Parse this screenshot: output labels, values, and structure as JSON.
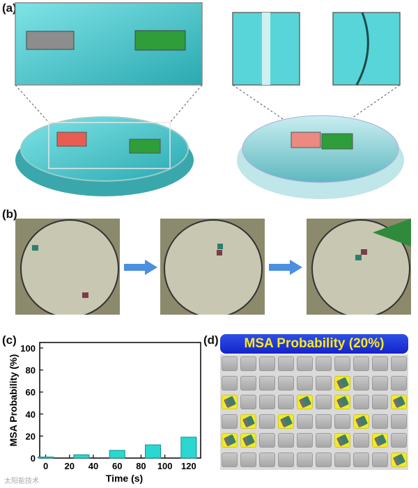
{
  "labels": {
    "a": "(a)",
    "b": "(b)",
    "c": "(c)",
    "d": "(d)"
  },
  "colors": {
    "water": "#4cc9cf",
    "bar": "#2ad7d1",
    "grid_hit": "#f1ea2b",
    "header_bg": "#1e33d8",
    "header_text": "#ffe81a",
    "arrow": "#4a8fe0"
  },
  "panel_d": {
    "title": "MSA Probability (20%)",
    "rows": 6,
    "cols": 10,
    "hits": [
      [
        1,
        6
      ],
      [
        2,
        0
      ],
      [
        2,
        4
      ],
      [
        2,
        6
      ],
      [
        2,
        9
      ],
      [
        3,
        1
      ],
      [
        3,
        3
      ],
      [
        3,
        7
      ],
      [
        4,
        0
      ],
      [
        4,
        1
      ],
      [
        4,
        6
      ],
      [
        4,
        8
      ],
      [
        5,
        9
      ]
    ]
  },
  "chart_data": {
    "type": "bar",
    "x": [
      0,
      30,
      60,
      90,
      120
    ],
    "values": [
      1,
      3,
      7,
      12,
      19
    ],
    "xlabel": "Time (s)",
    "ylabel": "MSA Probability (%)",
    "xlim": [
      -5,
      130
    ],
    "ylim": [
      0,
      105
    ],
    "xticks": [
      0,
      20,
      40,
      60,
      80,
      100,
      120
    ],
    "yticks": [
      0,
      20,
      40,
      60,
      80,
      100
    ]
  },
  "watermark": "太阳能技术"
}
